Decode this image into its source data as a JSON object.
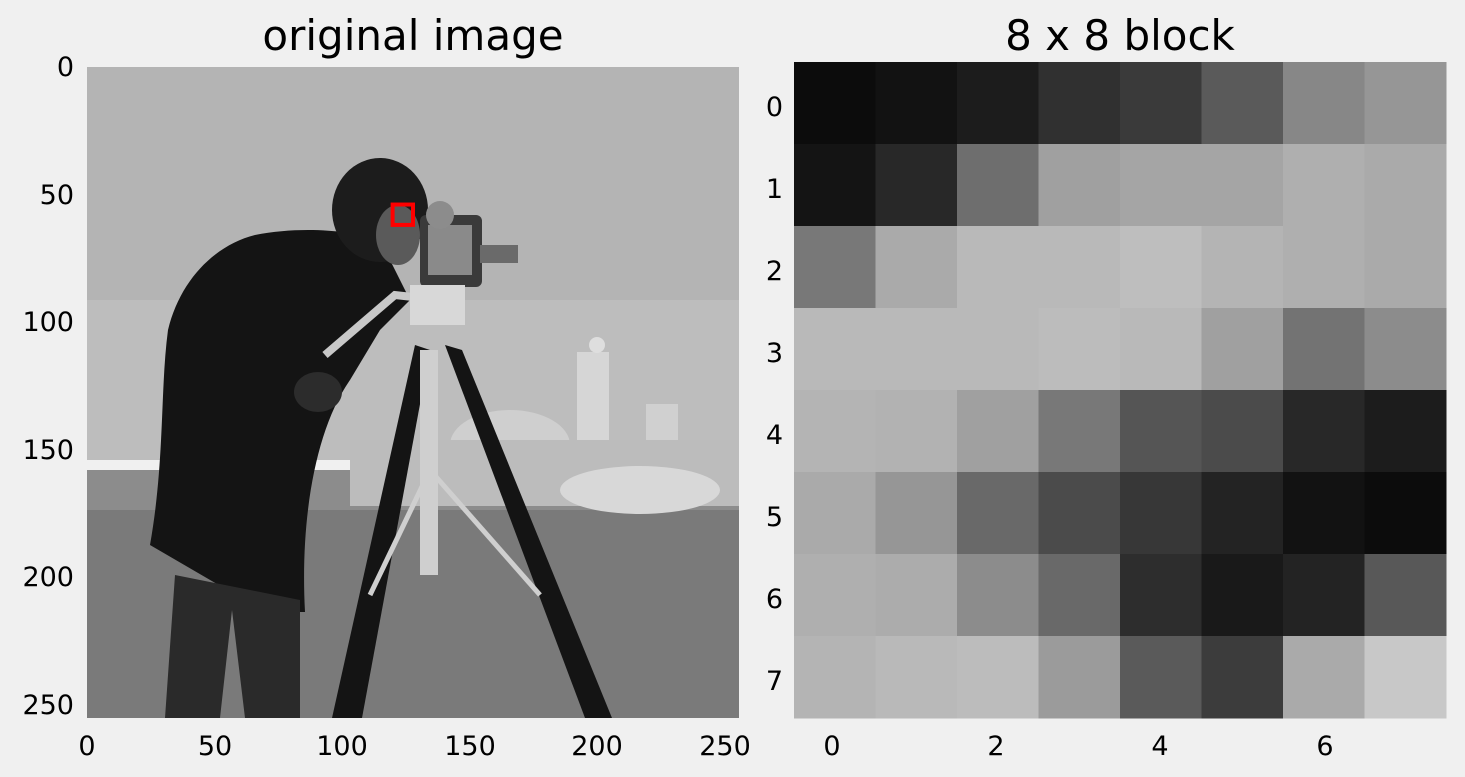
{
  "figure": {
    "background": "#f0f0f0"
  },
  "chart_data": [
    {
      "type": "image",
      "title": "original image",
      "image_size": [
        256,
        256
      ],
      "xlim": [
        0,
        256
      ],
      "ylim": [
        256,
        0
      ],
      "xticks": [
        0,
        50,
        100,
        150,
        200,
        250
      ],
      "yticks": [
        0,
        50,
        100,
        150,
        200,
        250
      ],
      "grid": false,
      "highlight_box": {
        "x0": 120,
        "y0": 54,
        "x1": 128,
        "y1": 62,
        "color": "#ff0000"
      },
      "image_description": "grayscale photograph (cameraman)"
    },
    {
      "type": "heatmap",
      "title": "8 x 8 block",
      "colormap": "gray",
      "xticks": [
        0,
        2,
        4,
        6
      ],
      "yticks": [
        0,
        1,
        2,
        3,
        4,
        5,
        6,
        7
      ],
      "grid": false,
      "values": [
        [
          12,
          18,
          28,
          48,
          58,
          90,
          135,
          150
        ],
        [
          20,
          40,
          110,
          160,
          165,
          165,
          175,
          170
        ],
        [
          120,
          170,
          185,
          185,
          190,
          180,
          175,
          170
        ],
        [
          185,
          185,
          185,
          188,
          185,
          160,
          115,
          140
        ],
        [
          180,
          178,
          160,
          120,
          85,
          75,
          40,
          28
        ],
        [
          170,
          150,
          105,
          75,
          55,
          35,
          18,
          12
        ],
        [
          175,
          172,
          140,
          105,
          45,
          25,
          35,
          88
        ],
        [
          180,
          185,
          188,
          155,
          90,
          60,
          170,
          200
        ]
      ]
    }
  ]
}
